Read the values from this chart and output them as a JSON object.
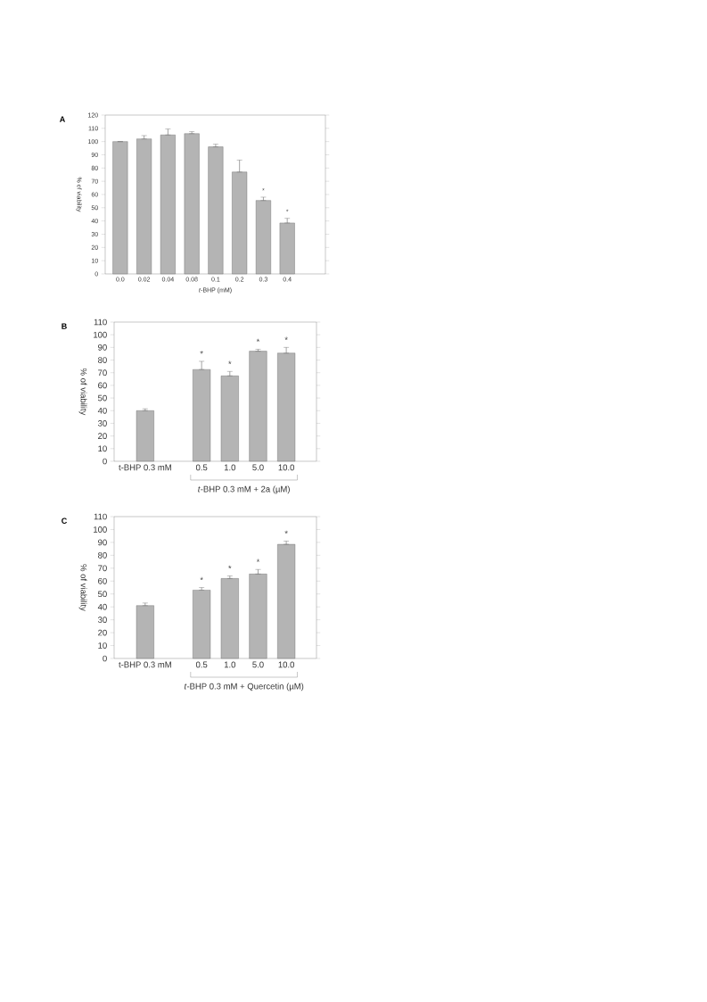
{
  "chart_data": [
    {
      "type": "bar",
      "title": "A",
      "xlabel": "*t*-BHP (mM)",
      "ylabel": "% of viability",
      "categories": [
        "0.0",
        "0.02",
        "0.04",
        "0.08",
        "0.1",
        "0.2",
        "0.3",
        "0.4"
      ],
      "values": [
        100,
        102,
        105,
        106,
        96,
        77,
        55.5,
        38.5
      ],
      "errors": [
        null,
        [
          102,
          104.5
        ],
        [
          105,
          109.5
        ],
        [
          106,
          107.5
        ],
        [
          96,
          98
        ],
        [
          77,
          86
        ],
        [
          55.5,
          58
        ],
        [
          38.5,
          42
        ]
      ],
      "color": "#b4b4b4",
      "ylim": [
        0,
        120
      ],
      "yticks": [
        0,
        10,
        20,
        30,
        40,
        50,
        60,
        70,
        80,
        90,
        100,
        110,
        120
      ],
      "annotations": [
        {
          "text": "*",
          "x": "0.3",
          "y": 55.5
        },
        {
          "text": "*",
          "x": "0.4",
          "y": 38.5
        }
      ]
    },
    {
      "type": "bar",
      "title": "B",
      "xlabel": "*t*-BHP 0.3 mM + 2a (µM)",
      "ylabel": "% of viability",
      "categories": [
        "t-BHP 0.3 mM",
        null,
        "0.5",
        "1.0",
        "5.0",
        "10.0"
      ],
      "values": [
        40,
        null,
        72.5,
        67.5,
        87,
        85.5
      ],
      "errors": [
        [
          40,
          41.5
        ],
        null,
        [
          72.5,
          79
        ],
        [
          67.5,
          71
        ],
        [
          87,
          88.5
        ],
        [
          85.5,
          90
        ]
      ],
      "color": "#b4b4b4",
      "ylim": [
        0,
        110
      ],
      "yticks": [
        0,
        10,
        20,
        30,
        40,
        50,
        60,
        70,
        80,
        90,
        100,
        110
      ],
      "annotations": [
        {
          "text": "*",
          "x": "0.5",
          "y": 72.5
        },
        {
          "text": "*",
          "x": "1.0",
          "y": 67.5
        },
        {
          "text": "*",
          "x": "5.0",
          "y": 87
        },
        {
          "text": "*",
          "x": "10.0",
          "y": 85.5
        }
      ]
    },
    {
      "type": "bar",
      "title": "C",
      "xlabel": "*t*-BHP 0.3 mM + Quercetin (µM)",
      "ylabel": "% of viability",
      "categories": [
        "t-BHP 0.3 mM",
        null,
        "0.5",
        "1.0",
        "5.0",
        "10.0"
      ],
      "values": [
        41,
        null,
        53,
        62,
        65.5,
        88.5
      ],
      "errors": [
        [
          41,
          43
        ],
        null,
        [
          53,
          55
        ],
        [
          62,
          64
        ],
        [
          65.5,
          69
        ],
        [
          88.5,
          91
        ]
      ],
      "color": "#b4b4b4",
      "ylim": [
        0,
        110
      ],
      "yticks": [
        0,
        10,
        20,
        30,
        40,
        50,
        60,
        70,
        80,
        90,
        100,
        110
      ],
      "annotations": [
        {
          "text": "*",
          "x": "0.5",
          "y": 53
        },
        {
          "text": "*",
          "x": "1.0",
          "y": 62
        },
        {
          "text": "*",
          "x": "5.0",
          "y": 65.5
        },
        {
          "text": "*",
          "x": "10.0",
          "y": 88.5
        }
      ]
    }
  ]
}
